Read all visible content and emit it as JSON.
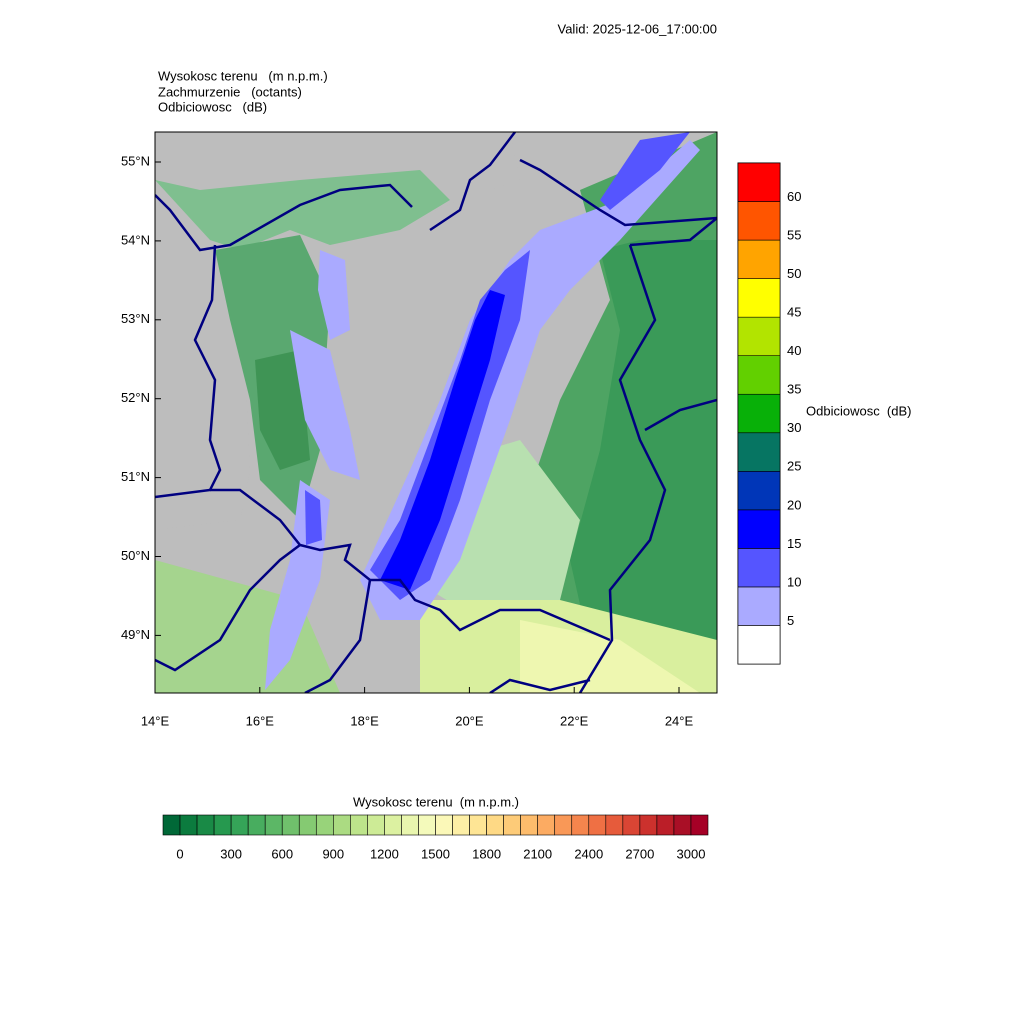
{
  "valid": "Valid: 2025-12-06_17:00:00",
  "titles": [
    "Wysokosc terenu   (m n.p.m.)",
    "Zachmurzenie   (octants)",
    "Odbiciowosc   (dB)"
  ],
  "map": {
    "xticks": [
      "14°E",
      "16°E",
      "18°E",
      "20°E",
      "22°E",
      "24°E"
    ],
    "yticks": [
      "55°N",
      "54°N",
      "53°N",
      "52°N",
      "51°N",
      "50°N",
      "49°N"
    ]
  },
  "reflectivity_bar": {
    "title": "Odbiciowosc  (dB)",
    "labels": [
      5,
      10,
      15,
      20,
      25,
      30,
      35,
      40,
      45,
      50,
      55,
      60
    ],
    "colors": [
      "#ffffff",
      "#aaaaff",
      "#5555ff",
      "#0000ff",
      "#0036b8",
      "#067562",
      "#08b008",
      "#62d000",
      "#b2e400",
      "#ffff00",
      "#ffa400",
      "#ff5500",
      "#ff0000"
    ]
  },
  "terrain_bar": {
    "title": "Wysokosc terenu  (m n.p.m.)",
    "labels": [
      0,
      300,
      600,
      900,
      1200,
      1500,
      1800,
      2100,
      2400,
      2700,
      3000
    ],
    "colors": [
      "#006837",
      "#0b7b3e",
      "#198a46",
      "#26994f",
      "#35a458",
      "#48ad5f",
      "#5cb766",
      "#70c06c",
      "#85ca72",
      "#98d37a",
      "#abdb82",
      "#bde48b",
      "#cdeb96",
      "#dcf1a1",
      "#e9f6ae",
      "#f4fabb",
      "#fbf8b8",
      "#fdefa6",
      "#fee595",
      "#fed985",
      "#fdcb78",
      "#fdbc6c",
      "#fcab62",
      "#f99857",
      "#f5854d",
      "#ef7044",
      "#e65b3b",
      "#da4534",
      "#cc312d",
      "#bb1e28",
      "#a90f26",
      "#a50026"
    ]
  }
}
